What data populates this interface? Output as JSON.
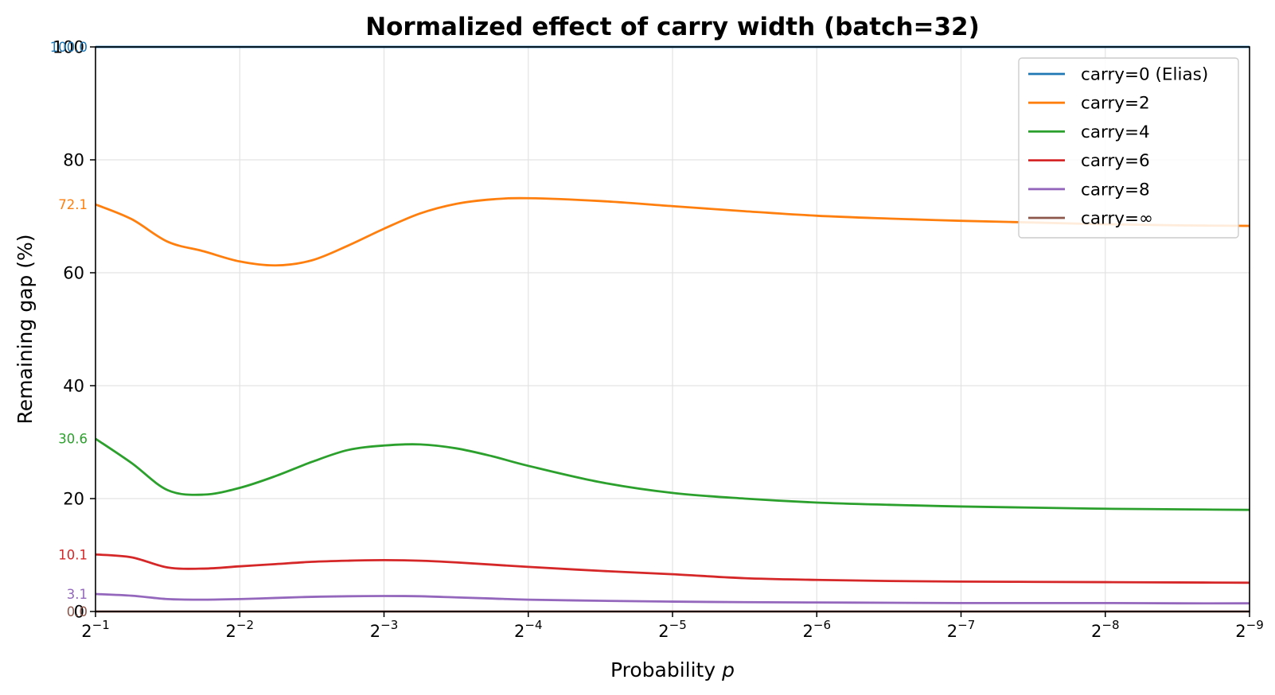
{
  "chart_data": {
    "type": "line",
    "title": "Normalized effect of carry width (batch=32)",
    "xlabel_prefix": "Probability ",
    "xlabel_var": "p",
    "ylabel": "Remaining gap (%)",
    "x_axis": {
      "scale": "log2",
      "direction": "decreasing",
      "ticks": [
        {
          "base": "2",
          "exp": "−1"
        },
        {
          "base": "2",
          "exp": "−2"
        },
        {
          "base": "2",
          "exp": "−3"
        },
        {
          "base": "2",
          "exp": "−4"
        },
        {
          "base": "2",
          "exp": "−5"
        },
        {
          "base": "2",
          "exp": "−6"
        },
        {
          "base": "2",
          "exp": "−7"
        },
        {
          "base": "2",
          "exp": "−8"
        },
        {
          "base": "2",
          "exp": "−9"
        }
      ]
    },
    "y_axis": {
      "ylim": [
        0,
        100
      ],
      "ticks": [
        "0",
        "20",
        "40",
        "60",
        "80",
        "100"
      ]
    },
    "grid": true,
    "legend_position": "top-right",
    "x": [
      -1,
      -1.25,
      -1.5,
      -1.75,
      -2,
      -2.25,
      -2.5,
      -2.75,
      -3,
      -3.25,
      -3.5,
      -3.75,
      -4,
      -4.5,
      -5,
      -5.5,
      -6,
      -6.5,
      -7,
      -7.5,
      -8,
      -8.5,
      -9
    ],
    "series": [
      {
        "name": "carry=0 (Elias)",
        "color": "#1f77b4",
        "start_label": "100.0",
        "values": [
          100,
          100,
          100,
          100,
          100,
          100,
          100,
          100,
          100,
          100,
          100,
          100,
          100,
          100,
          100,
          100,
          100,
          100,
          100,
          100,
          100,
          100,
          100
        ]
      },
      {
        "name": "carry=2",
        "color": "#ff7f0e",
        "start_label": "72.1",
        "values": [
          72.1,
          69.5,
          65.5,
          63.8,
          62.0,
          61.3,
          62.2,
          64.8,
          67.8,
          70.5,
          72.2,
          73.0,
          73.2,
          72.7,
          71.8,
          70.9,
          70.1,
          69.6,
          69.2,
          68.9,
          68.6,
          68.4,
          68.3
        ]
      },
      {
        "name": "carry=4",
        "color": "#2ca02c",
        "start_label": "30.6",
        "values": [
          30.6,
          26.3,
          21.5,
          20.7,
          21.9,
          24.0,
          26.5,
          28.6,
          29.4,
          29.6,
          28.9,
          27.5,
          25.8,
          22.9,
          21.0,
          20.0,
          19.3,
          18.9,
          18.6,
          18.4,
          18.2,
          18.1,
          18.0
        ]
      },
      {
        "name": "carry=6",
        "color": "#d62728",
        "start_label": "10.1",
        "values": [
          10.1,
          9.6,
          7.8,
          7.6,
          8.0,
          8.4,
          8.8,
          9.0,
          9.1,
          9.0,
          8.7,
          8.3,
          7.9,
          7.2,
          6.6,
          5.9,
          5.6,
          5.4,
          5.3,
          5.25,
          5.2,
          5.15,
          5.1
        ]
      },
      {
        "name": "carry=8",
        "color": "#9467bd",
        "start_label": "3.1",
        "values": [
          3.1,
          2.8,
          2.2,
          2.1,
          2.2,
          2.4,
          2.6,
          2.7,
          2.75,
          2.7,
          2.5,
          2.3,
          2.1,
          1.9,
          1.75,
          1.65,
          1.6,
          1.55,
          1.5,
          1.5,
          1.5,
          1.45,
          1.45
        ]
      },
      {
        "name": "carry=∞",
        "color": "#8c564b",
        "start_label": "0.0",
        "values": [
          0,
          0,
          0,
          0,
          0,
          0,
          0,
          0,
          0,
          0,
          0,
          0,
          0,
          0,
          0,
          0,
          0,
          0,
          0,
          0,
          0,
          0,
          0
        ]
      }
    ]
  }
}
